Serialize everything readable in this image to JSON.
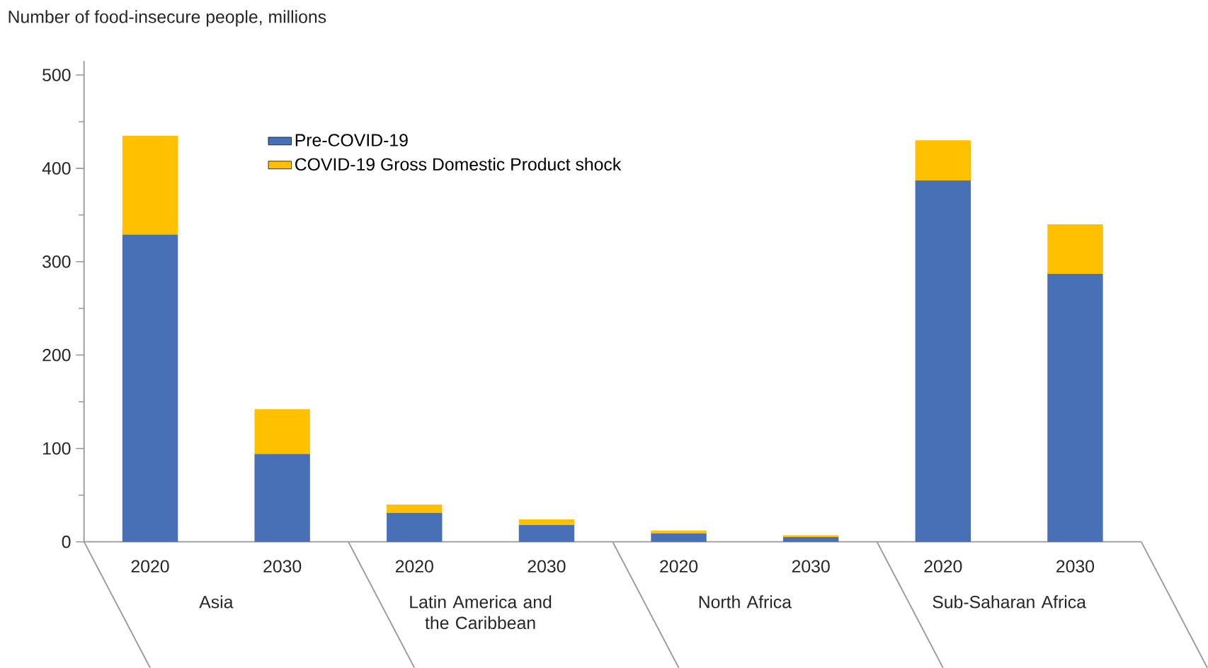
{
  "chart_data": {
    "type": "bar",
    "stacked": true,
    "ylabel": "Number of food-insecure people, millions",
    "categories": [
      "2020",
      "2030",
      "2020",
      "2030",
      "2020",
      "2030",
      "2020",
      "2030"
    ],
    "series": [
      {
        "name": "Pre-COVID-19",
        "color": "#4770b7",
        "values": [
          329,
          94,
          31,
          18,
          9,
          5,
          387,
          287
        ]
      },
      {
        "name": "COVID-19 Gross Domestic Product shock",
        "color": "#ffc000",
        "values": [
          106,
          48,
          9,
          6,
          3,
          2,
          43,
          53
        ]
      }
    ],
    "ylim": [
      0,
      515
    ],
    "yticks": [
      0,
      {
        "value": 50,
        "label": null
      },
      100,
      {
        "value": 150,
        "label": null
      },
      200,
      {
        "value": 250,
        "label": null
      },
      300,
      {
        "value": 350,
        "label": null
      },
      400,
      {
        "value": 450,
        "label": null
      },
      500
    ],
    "annotations": [
      "Asia",
      "Latin America and the Caribbean",
      "North Africa",
      "Sub-Saharan Africa"
    ],
    "legend": "top left"
  }
}
